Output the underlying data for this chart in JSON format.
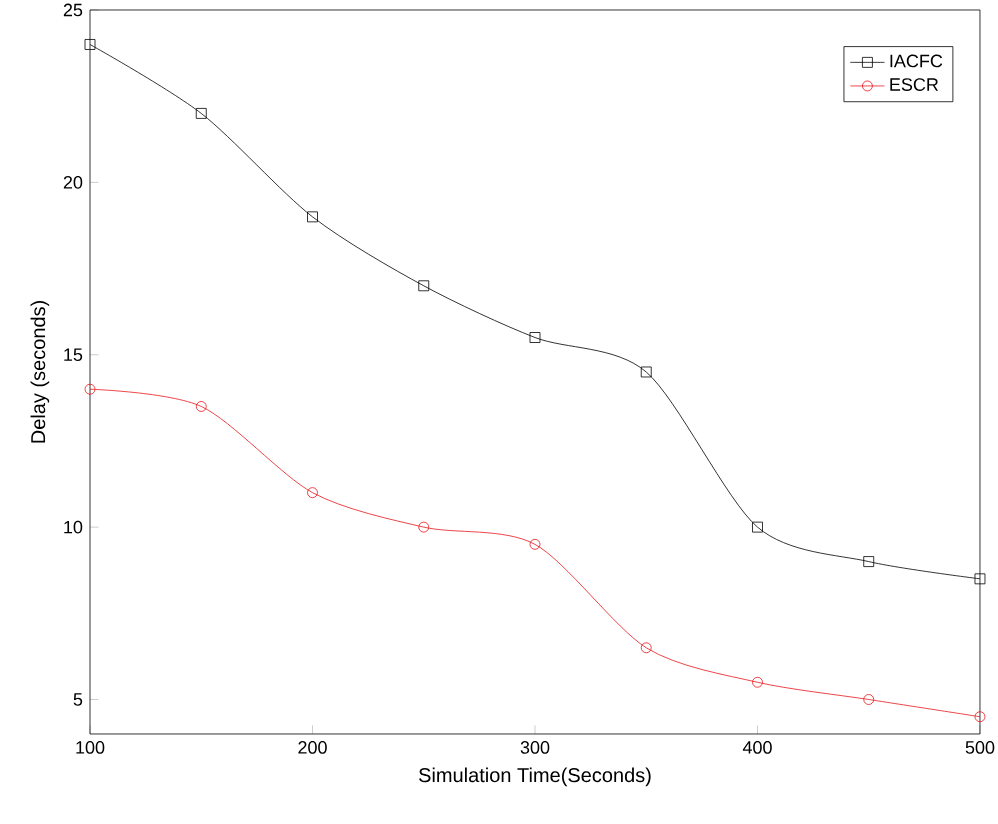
{
  "chart_data": {
    "type": "line",
    "xlabel": "Simulation Time(Seconds)",
    "ylabel": "Delay (seconds)",
    "x": [
      100,
      150,
      200,
      250,
      300,
      350,
      400,
      450,
      500
    ],
    "series": [
      {
        "name": "IACFC",
        "color": "#000000",
        "marker": "square",
        "values": [
          24,
          22,
          19,
          17,
          15.5,
          14.5,
          10,
          9,
          8.5
        ]
      },
      {
        "name": "ESCR",
        "color": "#e8161b",
        "marker": "circle",
        "values": [
          14,
          13.5,
          11,
          10,
          9.5,
          6.5,
          5.5,
          5,
          4.5
        ]
      }
    ],
    "xlim": [
      100,
      500
    ],
    "ylim": [
      4,
      25
    ],
    "xticks": [
      100,
      200,
      300,
      400,
      500
    ],
    "yticks": [
      5,
      10,
      15,
      20,
      25
    ],
    "legend": "top right",
    "grid": false
  }
}
